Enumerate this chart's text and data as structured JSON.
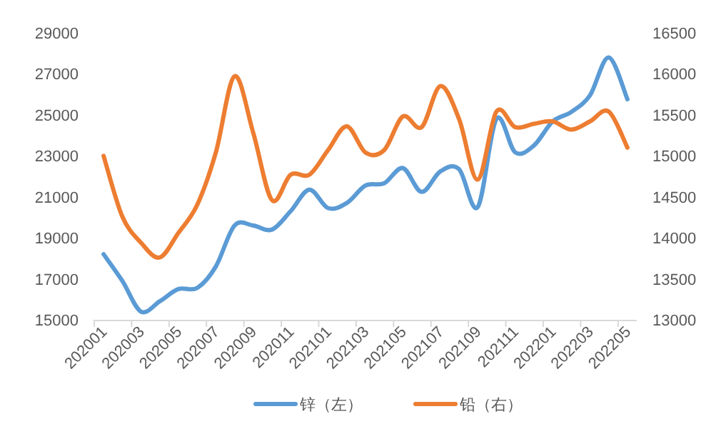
{
  "chart_data": {
    "type": "line",
    "categories": [
      "202001",
      null,
      "202003",
      null,
      "202005",
      null,
      "202007",
      null,
      "202009",
      null,
      "202011",
      null,
      "202101",
      null,
      "202103",
      null,
      "202105",
      null,
      "202107",
      null,
      "202109",
      null,
      "202111",
      null,
      "202201",
      null,
      "202203",
      null,
      "202205"
    ],
    "series": [
      {
        "name": "锌（左）",
        "color": "#5b9bd5",
        "values": [
          18200,
          16900,
          15400,
          15900,
          16500,
          16550,
          17600,
          19600,
          19600,
          19400,
          20300,
          21350,
          20450,
          20700,
          21550,
          21660,
          22400,
          21240,
          22240,
          22350,
          20500,
          24800,
          23170,
          23500,
          24670,
          25140,
          25950,
          27800,
          25760
        ]
      },
      {
        "name": "铅（右）",
        "color": "#ed7d31",
        "axis": "y2",
        "values": [
          15000,
          14260,
          13940,
          13760,
          14060,
          14400,
          15040,
          15970,
          15280,
          14460,
          14770,
          14770,
          15070,
          15360,
          15040,
          15070,
          15480,
          15350,
          15850,
          15450,
          14710,
          15540,
          15350,
          15390,
          15420,
          15320,
          15420,
          15540,
          15100
        ]
      }
    ],
    "ylim": [
      15000,
      29000
    ],
    "yticks": [
      15000,
      17000,
      19000,
      21000,
      23000,
      25000,
      27000,
      29000
    ],
    "y2lim": [
      13000,
      16500
    ],
    "y2ticks": [
      13000,
      13500,
      14000,
      14500,
      15000,
      15500,
      16000,
      16500
    ],
    "legend": "bottom",
    "grid": false,
    "marker": "none",
    "line_style": "solid"
  }
}
